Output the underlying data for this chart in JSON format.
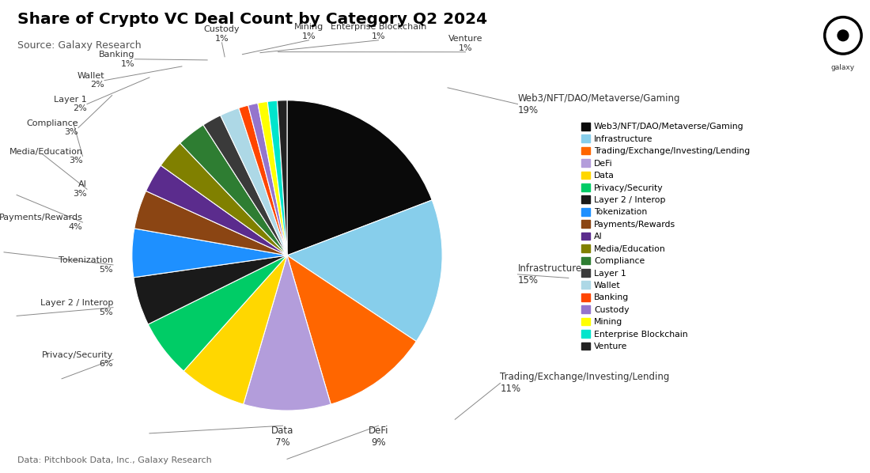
{
  "title": "Share of Crypto VC Deal Count by Category Q2 2024",
  "source": "Source: Galaxy Research",
  "footnote": "Data: Pitchbook Data, Inc., Galaxy Research",
  "categories": [
    "Web3/NFT/DAO/Metaverse/Gaming",
    "Infrastructure",
    "Trading/Exchange/Investing/Lending",
    "DeFi",
    "Data",
    "Privacy/Security",
    "Layer 2 / Interop",
    "Tokenization",
    "Payments/Rewards",
    "AI",
    "Media/Education",
    "Compliance",
    "Layer 1",
    "Wallet",
    "Banking",
    "Custody",
    "Mining",
    "Enterprise Blockchain",
    "Venture"
  ],
  "values": [
    19,
    15,
    11,
    9,
    7,
    6,
    5,
    5,
    4,
    3,
    3,
    3,
    2,
    2,
    1,
    1,
    1,
    1,
    1
  ],
  "colors": [
    "#0a0a0a",
    "#87CEEB",
    "#FF6600",
    "#B39DDB",
    "#FFD700",
    "#00CC66",
    "#1a1a1a",
    "#1E90FF",
    "#8B4513",
    "#5B2C8D",
    "#808000",
    "#2E7D32",
    "#3a3a3a",
    "#ADD8E6",
    "#FF4500",
    "#9575CD",
    "#FFFF00",
    "#00E5CC",
    "#222222"
  ],
  "figsize": [
    11.0,
    5.98
  ],
  "dpi": 100
}
